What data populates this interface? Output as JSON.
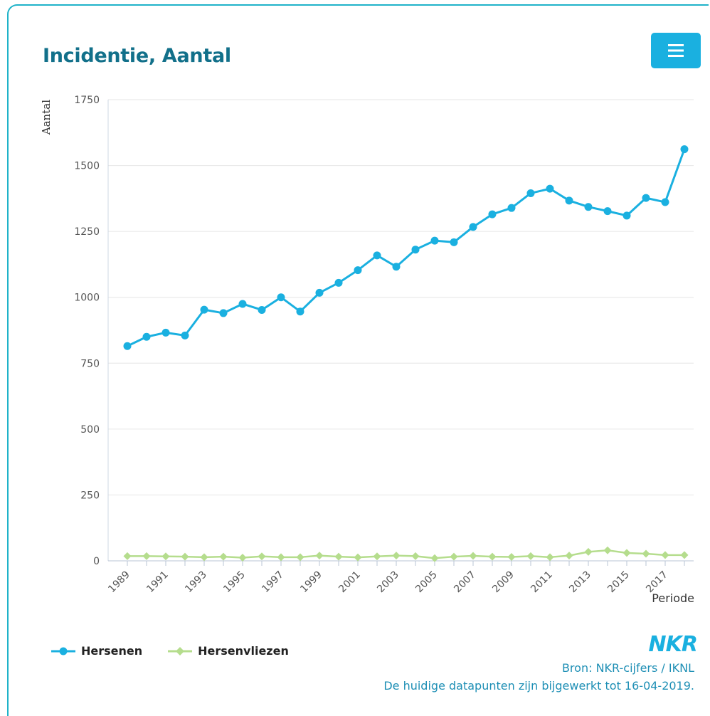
{
  "title": "Incidentie, Aantal",
  "menu": {
    "icon": "hamburger-menu-icon"
  },
  "legend": [
    {
      "label": "Hersenen",
      "color": "#1ab0e0",
      "marker": "circle"
    },
    {
      "label": "Hersenvliezen",
      "color": "#b5dd8d",
      "marker": "diamond"
    }
  ],
  "brand": "NKR",
  "source": "Bron: NKR-cijfers / IKNL",
  "updated": "De huidige datapunten zijn bijgewerkt tot 16-04-2019.",
  "chart_data": {
    "type": "line",
    "title": "Incidentie, Aantal",
    "xlabel": "Periode",
    "ylabel": "Aantal",
    "ylim": [
      0,
      1750
    ],
    "yticks": [
      0,
      250,
      500,
      750,
      1000,
      1250,
      1500,
      1750
    ],
    "x": [
      1989,
      1990,
      1991,
      1992,
      1993,
      1994,
      1995,
      1996,
      1997,
      1998,
      1999,
      2000,
      2001,
      2002,
      2003,
      2004,
      2005,
      2006,
      2007,
      2008,
      2009,
      2010,
      2011,
      2012,
      2013,
      2014,
      2015,
      2016,
      2017,
      2018
    ],
    "xtick_labels": [
      "1989",
      "1991",
      "1993",
      "1995",
      "1997",
      "1999",
      "2001",
      "2003",
      "2005",
      "2007",
      "2009",
      "2011",
      "2013",
      "2015",
      "2017"
    ],
    "grid": true,
    "legend_position": "bottom-left",
    "series": [
      {
        "name": "Hersenen",
        "color": "#1ab0e0",
        "marker": "circle",
        "values": [
          815,
          850,
          866,
          855,
          953,
          940,
          975,
          952,
          1000,
          946,
          1017,
          1055,
          1103,
          1159,
          1116,
          1181,
          1215,
          1209,
          1267,
          1315,
          1339,
          1395,
          1412,
          1367,
          1343,
          1327,
          1310,
          1377,
          1361,
          1562
        ]
      },
      {
        "name": "Hersenvliezen",
        "color": "#b5dd8d",
        "marker": "diamond",
        "values": [
          18,
          18,
          17,
          16,
          14,
          16,
          12,
          17,
          14,
          14,
          20,
          16,
          13,
          17,
          20,
          18,
          10,
          16,
          19,
          16,
          15,
          18,
          14,
          20,
          34,
          40,
          30,
          27,
          22,
          22
        ]
      }
    ]
  }
}
